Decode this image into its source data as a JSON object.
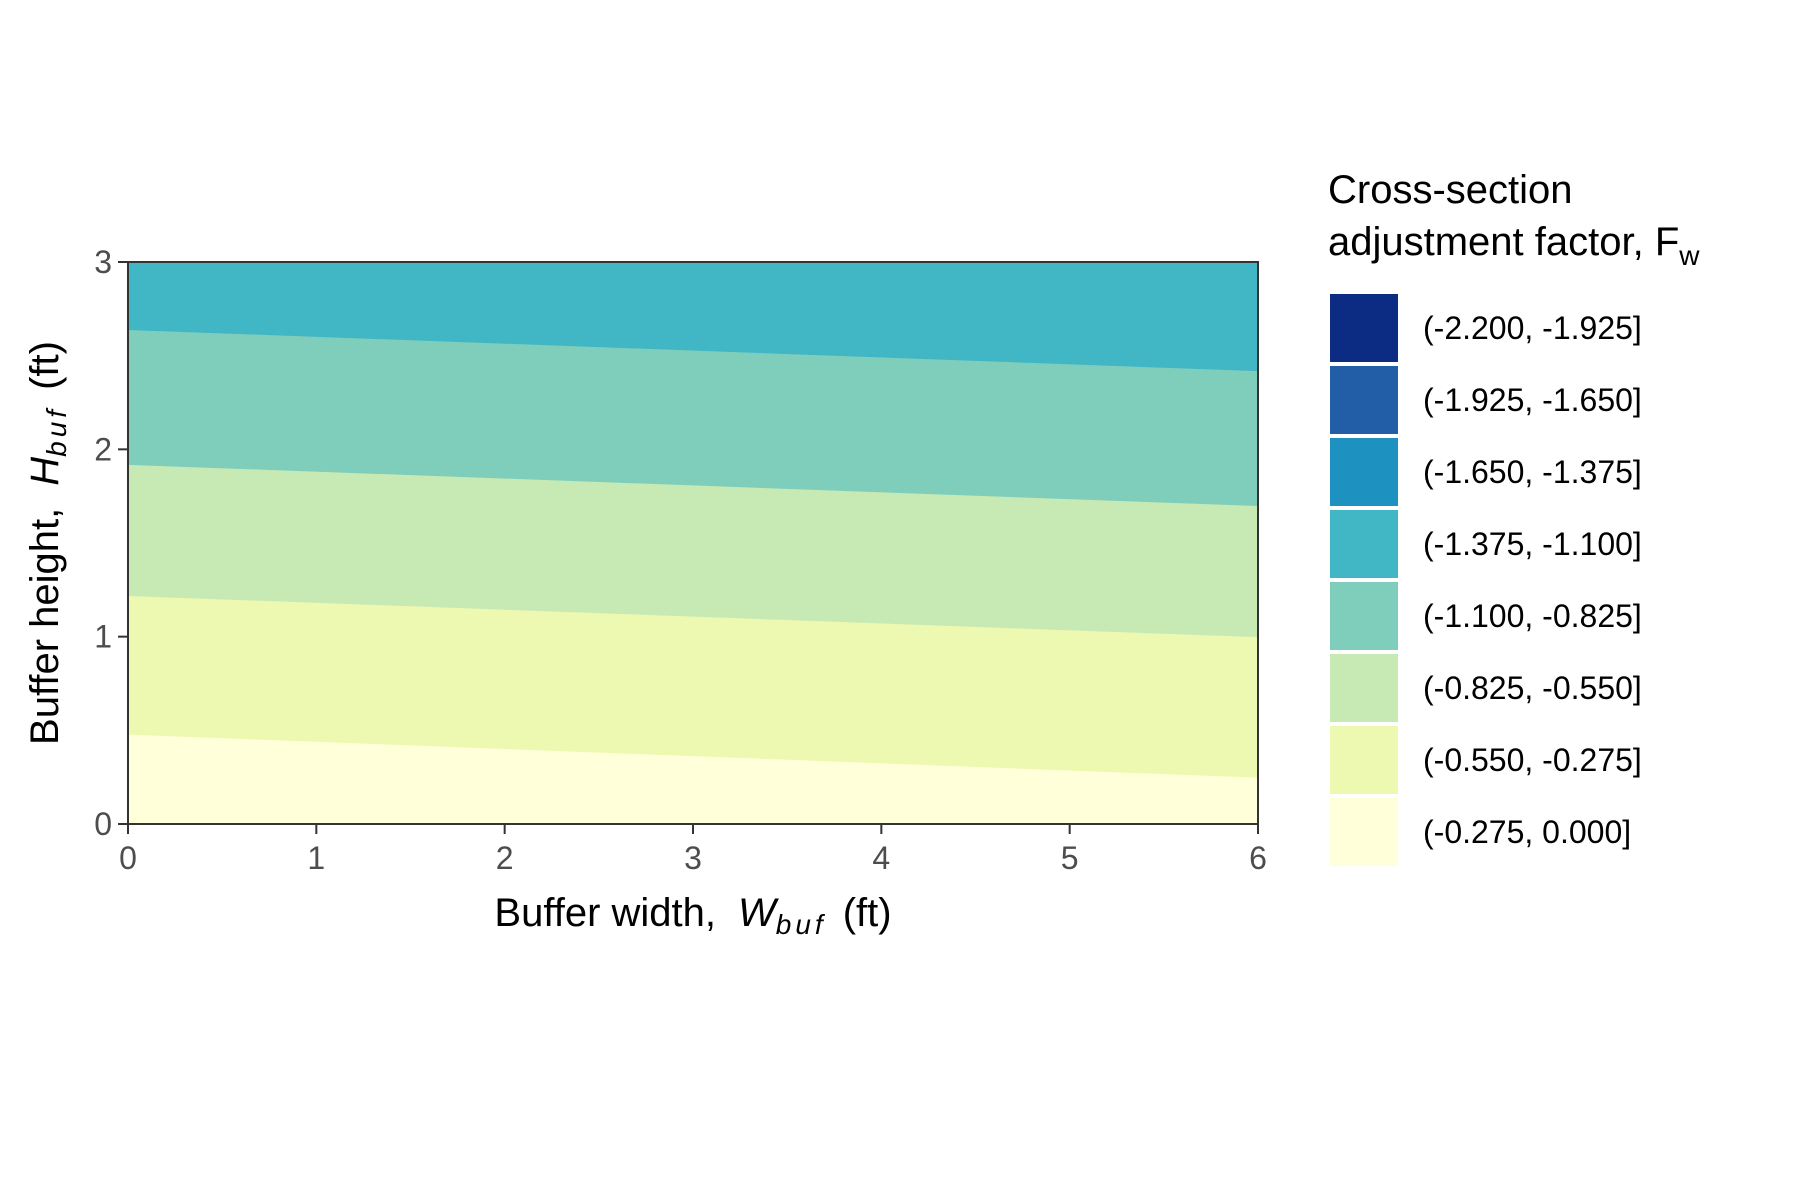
{
  "chart_data": {
    "type": "contour",
    "xlabel": {
      "main": "Buffer width,",
      "var": "W",
      "sub": "buf",
      "unit": "(ft)"
    },
    "ylabel": {
      "main": "Buffer height,",
      "var": "H",
      "sub": "buf",
      "unit": "(ft)"
    },
    "xlim": [
      0,
      6
    ],
    "ylim": [
      0,
      3
    ],
    "xticks": [
      "0",
      "1",
      "2",
      "3",
      "4",
      "5",
      "6"
    ],
    "yticks": [
      "0",
      "1",
      "2",
      "3"
    ],
    "legend": {
      "title_line1": "Cross-section",
      "title_line2": "adjustment factor, F",
      "title_sub": "w",
      "position": "right"
    },
    "bins": [
      {
        "label": "(-2.200, -1.925]",
        "color": "#0c2c84"
      },
      {
        "label": "(-1.925, -1.650]",
        "color": "#225ea8"
      },
      {
        "label": "(-1.650, -1.375]",
        "color": "#1d91c0"
      },
      {
        "label": "(-1.375, -1.100]",
        "color": "#41b6c4"
      },
      {
        "label": "(-1.100, -0.825]",
        "color": "#7fcdbb"
      },
      {
        "label": "(-0.825, -0.550]",
        "color": "#c7e9b4"
      },
      {
        "label": "(-0.550, -0.275]",
        "color": "#edf8b1"
      },
      {
        "label": "(-0.275, 0.000]",
        "color": "#ffffd9"
      }
    ],
    "contour_boundaries": [
      {
        "level": -0.275,
        "y_at_x0": 0.48,
        "y_at_x6": 0.25
      },
      {
        "level": -0.55,
        "y_at_x0": 1.22,
        "y_at_x6": 1.0
      },
      {
        "level": -0.825,
        "y_at_x0": 1.92,
        "y_at_x6": 1.7
      },
      {
        "level": -1.1,
        "y_at_x0": 2.64,
        "y_at_x6": 2.42
      }
    ],
    "grid": false
  }
}
